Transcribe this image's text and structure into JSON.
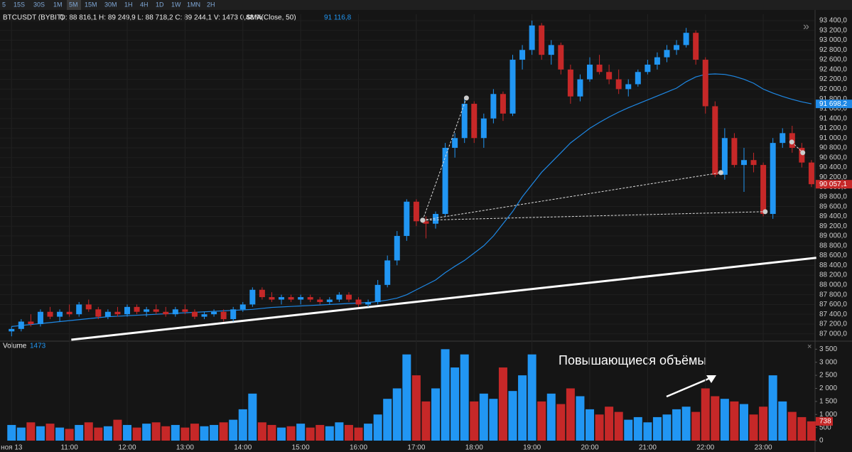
{
  "toolbar": {
    "timeframes": [
      "5",
      "15S",
      "30S",
      "1M",
      "5M",
      "15M",
      "30M",
      "1H",
      "4H",
      "1D",
      "1W",
      "1MN",
      "2H"
    ],
    "active": 4
  },
  "chart_data": {
    "type": "candlestick",
    "symbol": "BTCUSDT (BYBIT)",
    "ohlc_text": "O: 88 816,1 H: 89 249,9 L: 88 718,2 C: 89 244,1 V: 1473 0,48 %",
    "indicator": "SMA(Close, 50)",
    "indicator_value": "91 116,8",
    "volume_title": "Volume",
    "volume_value": 1473,
    "annotation": "Повышающиеся объёмы",
    "up_color": "#2196f3",
    "down_color": "#c62828",
    "sma_color": "#1e88e5",
    "grid": true,
    "xlim": [
      -1.2,
      83.3
    ],
    "xticks": [
      {
        "value": 0,
        "label": "ноя 13"
      },
      {
        "value": 6,
        "label": "11:00"
      },
      {
        "value": 12,
        "label": "12:00"
      },
      {
        "value": 18,
        "label": "13:00"
      },
      {
        "value": 24,
        "label": "14:00"
      },
      {
        "value": 30,
        "label": "15:00"
      },
      {
        "value": 36,
        "label": "16:00"
      },
      {
        "value": 42,
        "label": "17:00"
      },
      {
        "value": 48,
        "label": "18:00"
      },
      {
        "value": 54,
        "label": "19:00"
      },
      {
        "value": 60,
        "label": "20:00"
      },
      {
        "value": 66,
        "label": "21:00"
      },
      {
        "value": 72,
        "label": "22:00"
      },
      {
        "value": 78,
        "label": "23:00"
      }
    ],
    "ylim": [
      86880,
      93530
    ],
    "yticks": [
      {
        "value": 87000,
        "label": "87 000,0"
      },
      {
        "value": 87200,
        "label": "87 200,0"
      },
      {
        "value": 87400,
        "label": "87 400,0"
      },
      {
        "value": 87600,
        "label": "87 600,0"
      },
      {
        "value": 87800,
        "label": "87 800,0"
      },
      {
        "value": 88000,
        "label": "88 000,0"
      },
      {
        "value": 88200,
        "label": "88 200,0"
      },
      {
        "value": 88400,
        "label": "88 400,0"
      },
      {
        "value": 88600,
        "label": "88 600,0"
      },
      {
        "value": 88800,
        "label": "88 800,0"
      },
      {
        "value": 89000,
        "label": "89 000,0"
      },
      {
        "value": 89200,
        "label": "89 200,0"
      },
      {
        "value": 89400,
        "label": "89 400,0"
      },
      {
        "value": 89600,
        "label": "89 600,0"
      },
      {
        "value": 89800,
        "label": "89 800,0"
      },
      {
        "value": 90000,
        "label": "90 000,0"
      },
      {
        "value": 90200,
        "label": "90 200,0"
      },
      {
        "value": 90400,
        "label": "90 400,0"
      },
      {
        "value": 90600,
        "label": "90 600,0"
      },
      {
        "value": 90800,
        "label": "90 800,0"
      },
      {
        "value": 91000,
        "label": "91 000,0"
      },
      {
        "value": 91200,
        "label": "91 200,0"
      },
      {
        "value": 91400,
        "label": "91 400,0"
      },
      {
        "value": 91600,
        "label": "91 600,0"
      },
      {
        "value": 91800,
        "label": "91 800,0"
      },
      {
        "value": 92000,
        "label": "92 000,0"
      },
      {
        "value": 92200,
        "label": "92 200,0"
      },
      {
        "value": 92400,
        "label": "92 400,0"
      },
      {
        "value": 92600,
        "label": "92 600,0"
      },
      {
        "value": 92800,
        "label": "92 800,0"
      },
      {
        "value": 93000,
        "label": "93 000,0"
      },
      {
        "value": 93200,
        "label": "93 200,0"
      },
      {
        "value": 93400,
        "label": "93 400,0"
      }
    ],
    "vlim": [
      0,
      3700
    ],
    "vticks": [
      0,
      500,
      {
        "value": 1000,
        "label": "1 000"
      },
      {
        "value": 1500,
        "label": "1 500"
      },
      {
        "value": 2000,
        "label": "2 000"
      },
      {
        "value": 2500,
        "label": "2 500"
      },
      {
        "value": 3000,
        "label": "3 000"
      },
      {
        "value": 3500,
        "label": "3 500"
      }
    ],
    "open": [
      87050,
      87100,
      87250,
      87200,
      87450,
      87350,
      87450,
      87400,
      87600,
      87500,
      87350,
      87450,
      87400,
      87550,
      87450,
      87500,
      87450,
      87400,
      87500,
      87450,
      87350,
      87400,
      87450,
      87300,
      87500,
      87600,
      87900,
      87750,
      87700,
      87750,
      87700,
      87750,
      87700,
      87650,
      87700,
      87800,
      87700,
      87600,
      87650,
      88000,
      88500,
      89000,
      89700,
      89300,
      89250,
      89450,
      90800,
      91000,
      91700,
      91000,
      91400,
      91900,
      91500,
      92600,
      92800,
      93300,
      92700,
      92900,
      92400,
      91850,
      92200,
      92500,
      92350,
      92200,
      92000,
      92100,
      92350,
      92500,
      92650,
      92800,
      92900,
      93150,
      92600,
      91650,
      90250,
      91000,
      90450,
      90550,
      90450,
      89450,
      90900,
      91100,
      90800,
      90500
    ],
    "high": [
      87150,
      87300,
      87400,
      87500,
      87550,
      87500,
      87600,
      87650,
      87700,
      87550,
      87500,
      87550,
      87600,
      87600,
      87550,
      87600,
      87550,
      87550,
      87600,
      87500,
      87450,
      87500,
      87500,
      87550,
      87650,
      87950,
      87950,
      87850,
      87800,
      87800,
      87800,
      87800,
      87750,
      87750,
      87850,
      87850,
      87750,
      87700,
      88100,
      88600,
      89100,
      89750,
      89750,
      89400,
      89500,
      90900,
      91100,
      91800,
      91750,
      91500,
      92000,
      91950,
      92700,
      92900,
      93400,
      93350,
      93000,
      92950,
      92500,
      92300,
      92650,
      92700,
      92500,
      92400,
      92200,
      92400,
      92600,
      92750,
      92900,
      93000,
      93250,
      93200,
      92650,
      91750,
      91200,
      91100,
      90800,
      90700,
      90500,
      91000,
      91200,
      91250,
      90900,
      90550
    ],
    "low": [
      86950,
      87050,
      87150,
      87150,
      87300,
      87250,
      87350,
      87350,
      87450,
      87300,
      87300,
      87350,
      87350,
      87400,
      87350,
      87400,
      87350,
      87350,
      87400,
      87300,
      87300,
      87350,
      87250,
      87250,
      87450,
      87550,
      87700,
      87650,
      87600,
      87650,
      87600,
      87650,
      87600,
      87600,
      87650,
      87650,
      87550,
      87550,
      87600,
      87950,
      88400,
      88900,
      89200,
      88950,
      89150,
      89400,
      90600,
      90900,
      90900,
      90800,
      91300,
      91350,
      91450,
      92400,
      92700,
      92600,
      92500,
      92300,
      91700,
      91750,
      92150,
      92300,
      92100,
      91900,
      91850,
      92050,
      92300,
      92400,
      92550,
      92700,
      92850,
      92500,
      91500,
      90200,
      90150,
      90400,
      89900,
      90300,
      89400,
      89350,
      90800,
      90700,
      90400,
      90000
    ],
    "close": [
      87100,
      87250,
      87200,
      87450,
      87350,
      87450,
      87400,
      87600,
      87500,
      87350,
      87450,
      87400,
      87550,
      87450,
      87500,
      87450,
      87400,
      87500,
      87450,
      87350,
      87400,
      87450,
      87300,
      87500,
      87600,
      87900,
      87750,
      87700,
      87750,
      87700,
      87750,
      87700,
      87650,
      87700,
      87800,
      87700,
      87600,
      87650,
      88000,
      88500,
      89000,
      89700,
      89300,
      89250,
      89450,
      90800,
      91000,
      91700,
      91000,
      91400,
      91900,
      91500,
      92600,
      92800,
      93300,
      92700,
      92900,
      92400,
      91850,
      92200,
      92500,
      92350,
      92200,
      92000,
      92100,
      92350,
      92500,
      92650,
      92800,
      92900,
      93150,
      92600,
      91650,
      90250,
      91000,
      90450,
      90550,
      90450,
      89450,
      90900,
      91100,
      90800,
      90500,
      90057.1
    ],
    "volume": [
      600,
      500,
      700,
      550,
      650,
      500,
      450,
      600,
      700,
      500,
      550,
      800,
      600,
      500,
      650,
      700,
      550,
      600,
      500,
      650,
      550,
      600,
      700,
      800,
      1200,
      1800,
      700,
      600,
      500,
      550,
      650,
      500,
      600,
      550,
      700,
      600,
      500,
      650,
      1000,
      1600,
      2000,
      3300,
      2500,
      1500,
      2000,
      3500,
      2800,
      3300,
      1500,
      1800,
      1600,
      2800,
      1900,
      2500,
      3300,
      1500,
      1800,
      1400,
      2000,
      1700,
      1200,
      1000,
      1300,
      1100,
      800,
      900,
      700,
      900,
      1000,
      1200,
      1300,
      1100,
      2000,
      1700,
      1600,
      1500,
      1400,
      1000,
      1300,
      2500,
      1500,
      1100,
      900,
      738
    ],
    "sma": [
      87150,
      87170,
      87190,
      87210,
      87230,
      87250,
      87270,
      87290,
      87310,
      87330,
      87350,
      87360,
      87370,
      87380,
      87390,
      87400,
      87410,
      87420,
      87430,
      87440,
      87450,
      87460,
      87470,
      87480,
      87490,
      87500,
      87520,
      87540,
      87550,
      87560,
      87570,
      87580,
      87590,
      87600,
      87610,
      87620,
      87630,
      87640,
      87660,
      87690,
      87730,
      87800,
      87900,
      88000,
      88100,
      88250,
      88380,
      88500,
      88650,
      88800,
      89000,
      89250,
      89500,
      89800,
      90050,
      90300,
      90500,
      90700,
      90900,
      91050,
      91200,
      91320,
      91430,
      91530,
      91620,
      91700,
      91780,
      91860,
      91940,
      92020,
      92150,
      92250,
      92300,
      92310,
      92300,
      92260,
      92200,
      92120,
      92000,
      91920,
      91850,
      91790,
      91740,
      91700
    ],
    "trendline": {
      "x": [
        6.2,
        83.5
      ],
      "y": [
        86880,
        88553
      ]
    },
    "drawings": [
      {
        "x": [
          42.66,
          47.2
        ],
        "y": [
          89322,
          91818
        ]
      },
      {
        "x": [
          42.66,
          73.6
        ],
        "y": [
          89322,
          90294
        ]
      },
      {
        "x": [
          42.66,
          78.2
        ],
        "y": [
          89322,
          89496
        ]
      },
      {
        "x": [
          80.96,
          82.1
        ],
        "y": [
          90919,
          90701
        ]
      }
    ],
    "price_labels": [
      {
        "value": 91698.2,
        "label": "91 698,2",
        "color": "#1e88e5"
      },
      {
        "value": 90057.1,
        "label": "90 057,1",
        "color": "#c62828"
      }
    ],
    "volume_marker": 738
  }
}
